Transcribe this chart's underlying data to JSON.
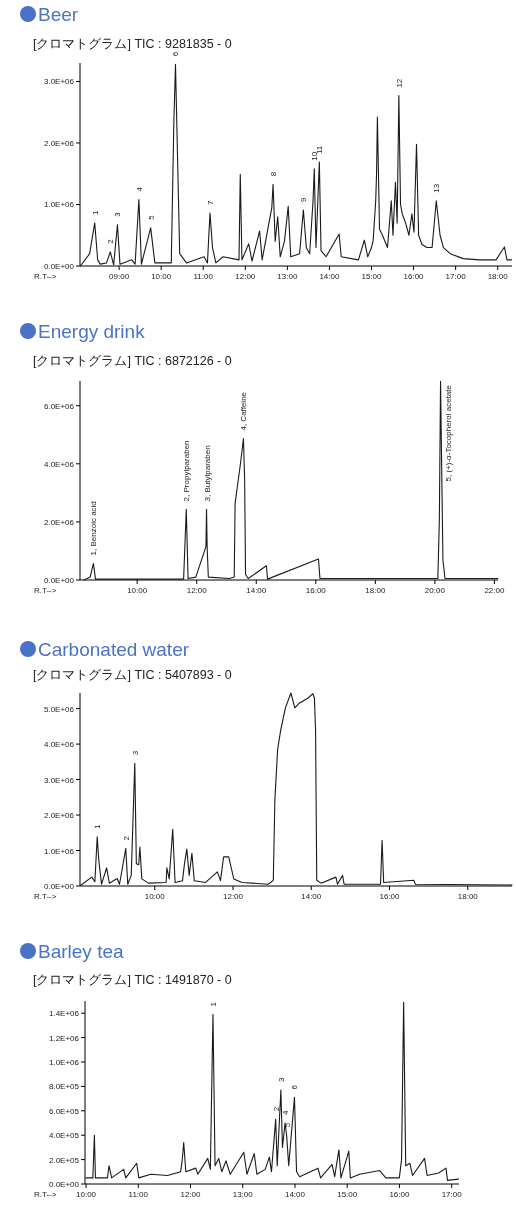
{
  "chart_data": [
    {
      "type": "line",
      "title": "Beer",
      "subtitle": "[クロマトグラム] TIC : 9281835 - 0",
      "xlabel": "R.T-->",
      "color": "#1a1a1a",
      "x": [
        8.08,
        8.3,
        8.42,
        8.49,
        8.55,
        8.7,
        8.79,
        8.87,
        8.96,
        9.02,
        9.3,
        9.38,
        9.47,
        9.53,
        9.75,
        9.85,
        10.24,
        10.3,
        10.34,
        10.44,
        10.6,
        11.02,
        11.1,
        11.16,
        11.22,
        11.3,
        11.47,
        11.85,
        11.88,
        11.92,
        12.08,
        12.16,
        12.34,
        12.4,
        12.63,
        12.66,
        12.71,
        12.77,
        12.83,
        12.93,
        13.02,
        13.08,
        13.29,
        13.38,
        13.45,
        13.53,
        13.61,
        13.64,
        13.68,
        13.76,
        13.8,
        13.92,
        14.23,
        14.28,
        14.69,
        14.83,
        14.91,
        15.0,
        15.04,
        15.1,
        15.12,
        15.14,
        15.19,
        15.26,
        15.38,
        15.47,
        15.51,
        15.57,
        15.61,
        15.65,
        15.69,
        15.73,
        15.81,
        15.89,
        15.96,
        16.01,
        16.07,
        16.12,
        16.2,
        16.32,
        16.44,
        16.54,
        16.63,
        16.71,
        16.87,
        17.18,
        17.57,
        17.96,
        18.16,
        18.22,
        18.33
      ],
      "values": [
        0,
        200000.0,
        700000.0,
        100000.0,
        30000.0,
        50000.0,
        230000.0,
        20000.0,
        670000.0,
        30000.0,
        100000.0,
        30000.0,
        1080000.0,
        30000.0,
        620000.0,
        50000.0,
        50000.0,
        2300000.0,
        3280000.0,
        200000.0,
        50000.0,
        150000.0,
        50000.0,
        860000.0,
        300000.0,
        50000.0,
        150000.0,
        100000.0,
        1490000.0,
        100000.0,
        360000.0,
        80000.0,
        570000.0,
        100000.0,
        950000.0,
        1330000.0,
        400000.0,
        800000.0,
        150000.0,
        400000.0,
        970000.0,
        150000.0,
        200000.0,
        910000.0,
        300000.0,
        200000.0,
        1060000.0,
        1580000.0,
        300000.0,
        1690000.0,
        250000.0,
        150000.0,
        520000.0,
        150000.0,
        100000.0,
        420000.0,
        150000.0,
        300000.0,
        420000.0,
        1060000.0,
        1500000.0,
        2420000.0,
        600000.0,
        500000.0,
        300000.0,
        1060000.0,
        500000.0,
        1360000.0,
        700000.0,
        2770000.0,
        1000000.0,
        850000.0,
        700000.0,
        500000.0,
        850000.0,
        550000.0,
        1980000.0,
        500000.0,
        350000.0,
        300000.0,
        300000.0,
        1060000.0,
        500000.0,
        300000.0,
        200000.0,
        120000.0,
        100000.0,
        100000.0,
        310000.0,
        100000.0,
        100000.0
      ],
      "xlim": [
        8.07,
        18.34
      ],
      "ylim": [
        0,
        3300000.0
      ],
      "xticks": [
        {
          "value": 9,
          "label": "09:00"
        },
        {
          "value": 10,
          "label": "10:00"
        },
        {
          "value": 11,
          "label": "11:00"
        },
        {
          "value": 12,
          "label": "12:00"
        },
        {
          "value": 13,
          "label": "13:00"
        },
        {
          "value": 14,
          "label": "14:00"
        },
        {
          "value": 15,
          "label": "15:00"
        },
        {
          "value": 16,
          "label": "16:00"
        },
        {
          "value": 17,
          "label": "17:00"
        },
        {
          "value": 18,
          "label": "18:00"
        }
      ],
      "yticks": [
        {
          "value": 0,
          "label": "0.0E+00"
        },
        {
          "value": 1000000,
          "label": "1.0E+06"
        },
        {
          "value": 2000000,
          "label": "2.0E+06"
        },
        {
          "value": 3000000,
          "label": "3.0E+06"
        }
      ],
      "annotations": [
        {
          "text": "1",
          "x": 8.42,
          "y": 700000.0
        },
        {
          "text": "2",
          "x": 8.79,
          "y": 230000.0
        },
        {
          "text": "3",
          "x": 8.96,
          "y": 670000.0
        },
        {
          "text": "4",
          "x": 9.47,
          "y": 1080000.0
        },
        {
          "text": "5",
          "x": 9.75,
          "y": 620000.0
        },
        {
          "text": "6",
          "x": 10.34,
          "y": 3280000.0
        },
        {
          "text": "7",
          "x": 11.16,
          "y": 860000.0
        },
        {
          "text": "8",
          "x": 12.66,
          "y": 1330000.0
        },
        {
          "text": "9",
          "x": 13.38,
          "y": 910000.0
        },
        {
          "text": "10",
          "x": 13.64,
          "y": 1580000.0
        },
        {
          "text": "11",
          "x": 13.76,
          "y": 1690000.0
        },
        {
          "text": "12",
          "x": 15.65,
          "y": 2770000.0
        },
        {
          "text": "13",
          "x": 16.54,
          "y": 1060000.0
        }
      ]
    },
    {
      "type": "line",
      "title": "Energy drink",
      "subtitle": "[クロマトグラム] TIC : 6872126 - 0",
      "xlabel": "R.T-->",
      "color": "#1a1a1a",
      "x": [
        8.21,
        8.42,
        8.53,
        8.6,
        9.78,
        11.5,
        11.56,
        11.65,
        11.71,
        11.97,
        12.31,
        12.33,
        12.35,
        12.39,
        13.1,
        13.26,
        13.29,
        13.47,
        13.57,
        13.61,
        13.64,
        13.73,
        14.34,
        14.38,
        16.09,
        16.14,
        20.1,
        20.15,
        20.19,
        20.27,
        20.34,
        22.12
      ],
      "values": [
        0,
        100000.0,
        570000.0,
        30000.0,
        30000.0,
        30000.0,
        30000.0,
        2430000.0,
        50000.0,
        100000.0,
        1150000.0,
        2430000.0,
        1150000.0,
        100000.0,
        50000.0,
        100000.0,
        2640000.0,
        4010000.0,
        4870000.0,
        3440000.0,
        200000.0,
        50000.0,
        490000.0,
        30000.0,
        720000.0,
        50000.0,
        50000.0,
        2060000.0,
        6840000.0,
        690000.0,
        50000.0,
        50000.0
      ],
      "xlim": [
        8.08,
        22.12
      ],
      "ylim": [
        0,
        6850000.0
      ],
      "xticks": [
        {
          "value": 10,
          "label": "10:00"
        },
        {
          "value": 12,
          "label": "12:00"
        },
        {
          "value": 14,
          "label": "14:00"
        },
        {
          "value": 16,
          "label": "16:00"
        },
        {
          "value": 18,
          "label": "18:00"
        },
        {
          "value": 20,
          "label": "20:00"
        },
        {
          "value": 22,
          "label": "22:00"
        }
      ],
      "yticks": [
        {
          "value": 0,
          "label": "0.0E+00"
        },
        {
          "value": 2000000,
          "label": "2.0E+06"
        },
        {
          "value": 4000000,
          "label": "4.0E+06"
        },
        {
          "value": 6000000,
          "label": "6.0E+06"
        }
      ],
      "annotations": [
        {
          "text": "1, Benzoic acid",
          "x": 8.53,
          "y": 570000.0
        },
        {
          "text": "2, Propylparaben",
          "x": 11.65,
          "y": 2430000.0
        },
        {
          "text": "3, Butylparaben",
          "x": 12.33,
          "y": 2430000.0
        },
        {
          "text": "4, Caffeine",
          "x": 13.57,
          "y": 4870000.0
        },
        {
          "text": "5, (+)-α-Tocopherol acetate",
          "x": 20.19,
          "y": 6840000.0
        }
      ]
    },
    {
      "type": "line",
      "title": "Carbonated water",
      "subtitle": "[クロマトグラム] TIC : 5407893 - 0",
      "xlabel": "R.T-->",
      "color": "#1a1a1a",
      "x": [
        8.11,
        8.39,
        8.47,
        8.53,
        8.57,
        8.64,
        8.77,
        8.84,
        9.04,
        9.1,
        9.26,
        9.31,
        9.4,
        9.49,
        9.53,
        9.59,
        9.62,
        9.67,
        9.84,
        10.29,
        10.31,
        10.37,
        10.46,
        10.52,
        10.71,
        10.76,
        10.82,
        10.88,
        10.95,
        11.01,
        11.3,
        11.6,
        11.68,
        11.76,
        11.89,
        12.02,
        12.23,
        12.9,
        13.03,
        13.07,
        13.14,
        13.22,
        13.34,
        13.48,
        13.58,
        13.7,
        13.92,
        14.04,
        14.08,
        14.11,
        14.14,
        14.25,
        14.63,
        14.67,
        14.8,
        14.84,
        15.77,
        15.81,
        15.85,
        16.62,
        16.66,
        19.13
      ],
      "values": [
        20000.0,
        250000.0,
        120000.0,
        1390000.0,
        730000.0,
        50000.0,
        510000.0,
        80000.0,
        210000.0,
        50000.0,
        1060000.0,
        50000.0,
        300000.0,
        3460000.0,
        630000.0,
        600000.0,
        1100000.0,
        200000.0,
        80000.0,
        100000.0,
        510000.0,
        200000.0,
        1600000.0,
        100000.0,
        150000.0,
        630000.0,
        1040000.0,
        300000.0,
        920000.0,
        150000.0,
        100000.0,
        400000.0,
        150000.0,
        820000.0,
        820000.0,
        200000.0,
        100000.0,
        50000.0,
        160000.0,
        2420000.0,
        3840000.0,
        4400000.0,
        5020000.0,
        5440000.0,
        5020000.0,
        5160000.0,
        5300000.0,
        5420000.0,
        5300000.0,
        4400000.0,
        160000.0,
        80000.0,
        250000.0,
        50000.0,
        300000.0,
        50000.0,
        50000.0,
        1290000.0,
        100000.0,
        160000.0,
        50000.0,
        30000.0
      ],
      "xlim": [
        8.09,
        19.13
      ],
      "ylim": [
        0,
        5440000.0
      ],
      "xticks": [
        {
          "value": 10,
          "label": "10:00"
        },
        {
          "value": 12,
          "label": "12:00"
        },
        {
          "value": 14,
          "label": "14:00"
        },
        {
          "value": 16,
          "label": "16:00"
        },
        {
          "value": 18,
          "label": "18:00"
        }
      ],
      "yticks": [
        {
          "value": 0,
          "label": "0.0E+00"
        },
        {
          "value": 1000000,
          "label": "1.0E+06"
        },
        {
          "value": 2000000,
          "label": "2.0E+06"
        },
        {
          "value": 3000000,
          "label": "3.0E+06"
        },
        {
          "value": 4000000,
          "label": "4.0E+06"
        },
        {
          "value": 5000000,
          "label": "5.0E+06"
        }
      ],
      "annotations": [
        {
          "text": "1",
          "x": 8.53,
          "y": 1390000.0
        },
        {
          "text": "2",
          "x": 9.26,
          "y": 1060000.0
        },
        {
          "text": "3",
          "x": 9.49,
          "y": 3460000.0
        }
      ]
    },
    {
      "type": "line",
      "title": "Barley tea",
      "subtitle": "[クロマトグラム] TIC : 1491870 - 0",
      "xlabel": "R.T-->",
      "color": "#1a1a1a",
      "x": [
        10.0,
        10.13,
        10.16,
        10.18,
        10.41,
        10.44,
        10.49,
        10.72,
        10.76,
        10.97,
        11.01,
        11.24,
        11.56,
        11.81,
        11.84,
        11.87,
        11.91,
        12.1,
        12.14,
        12.33,
        12.38,
        12.43,
        12.47,
        12.54,
        12.6,
        12.68,
        12.76,
        13.02,
        13.08,
        13.22,
        13.27,
        13.43,
        13.51,
        13.55,
        13.63,
        13.66,
        13.73,
        13.76,
        13.81,
        13.84,
        13.88,
        13.99,
        14.03,
        14.09,
        14.44,
        14.49,
        14.71,
        14.76,
        14.84,
        14.88,
        15.03,
        15.06,
        15.24,
        15.62,
        15.74,
        15.998,
        16.04,
        16.08,
        16.12,
        16.2,
        16.25,
        16.48,
        16.53,
        16.75,
        16.89,
        16.92,
        17.13
      ],
      "values": [
        50000.0,
        50000.0,
        400000.0,
        50000.0,
        50000.0,
        150000.0,
        50000.0,
        120000.0,
        50000.0,
        170000.0,
        50000.0,
        80000.0,
        70000.0,
        100000.0,
        190000.0,
        340000.0,
        100000.0,
        130000.0,
        80000.0,
        210000.0,
        120000.0,
        1390000.0,
        150000.0,
        210000.0,
        100000.0,
        190000.0,
        80000.0,
        260000.0,
        80000.0,
        250000.0,
        80000.0,
        120000.0,
        220000.0,
        100000.0,
        530000.0,
        150000.0,
        770000.0,
        300000.0,
        500000.0,
        400000.0,
        150000.0,
        710000.0,
        100000.0,
        60000.0,
        130000.0,
        50000.0,
        160000.0,
        60000.0,
        280000.0,
        50000.0,
        270000.0,
        50000.0,
        80000.0,
        110000.0,
        50000.0,
        50000.0,
        200000.0,
        1490000.0,
        150000.0,
        170000.0,
        70000.0,
        210000.0,
        70000.0,
        90000.0,
        130000.0,
        30000.0,
        40000.0
      ],
      "xlim": [
        9.98,
        17.14
      ],
      "ylim": [
        0,
        1500000.0
      ],
      "xticks": [
        {
          "value": 10,
          "label": "10:00"
        },
        {
          "value": 11,
          "label": "11:00"
        },
        {
          "value": 12,
          "label": "12:00"
        },
        {
          "value": 13,
          "label": "13:00"
        },
        {
          "value": 14,
          "label": "14:00"
        },
        {
          "value": 15,
          "label": "15:00"
        },
        {
          "value": 16,
          "label": "16:00"
        },
        {
          "value": 17,
          "label": "17:00"
        }
      ],
      "yticks": [
        {
          "value": 0,
          "label": "0.0E+00"
        },
        {
          "value": 200000,
          "label": "2.0E+05"
        },
        {
          "value": 400000,
          "label": "4.0E+05"
        },
        {
          "value": 600000,
          "label": "6.0E+05"
        },
        {
          "value": 800000,
          "label": "8.0E+05"
        },
        {
          "value": 1000000,
          "label": "1.0E+06"
        },
        {
          "value": 1200000,
          "label": "1.2E+06"
        },
        {
          "value": 1400000,
          "label": "1.4E+06"
        }
      ],
      "annotations": [
        {
          "text": "1",
          "x": 12.43,
          "y": 1390000.0
        },
        {
          "text": "2",
          "x": 13.63,
          "y": 530000.0
        },
        {
          "text": "3",
          "x": 13.73,
          "y": 770000.0
        },
        {
          "text": "4",
          "x": 13.81,
          "y": 500000.0
        },
        {
          "text": "5",
          "x": 13.84,
          "y": 400000.0
        },
        {
          "text": "6",
          "x": 13.99,
          "y": 710000.0
        }
      ]
    }
  ]
}
